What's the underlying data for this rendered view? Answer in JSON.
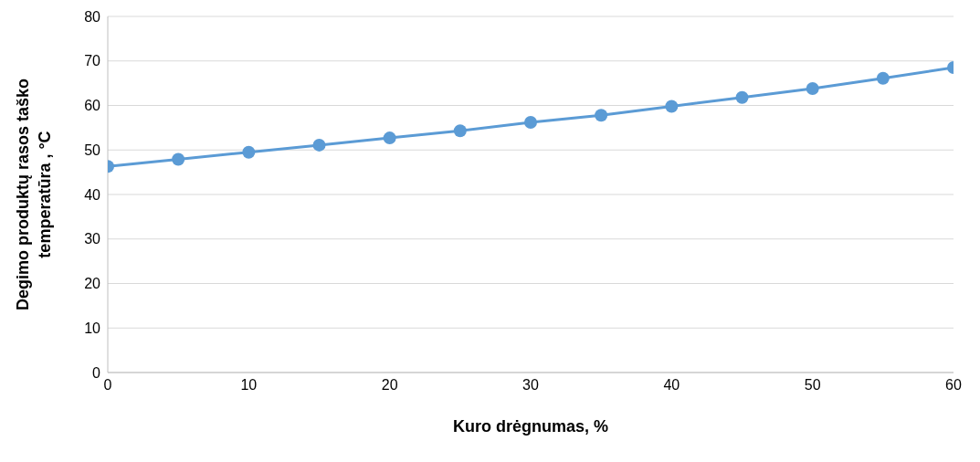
{
  "chart_data": {
    "type": "line",
    "xlabel": "Kuro drėgnumas,  %",
    "ylabel": "Degimo produktų rasos  taško temperatūra , °C",
    "x": [
      0,
      5,
      10,
      15,
      20,
      25,
      30,
      35,
      40,
      45,
      50,
      55,
      60
    ],
    "series": [
      {
        "color": "#5b9bd5",
        "values": [
          46.3,
          47.9,
          49.5,
          51.1,
          52.7,
          54.3,
          56.2,
          57.8,
          59.8,
          61.8,
          63.8,
          66.1,
          68.5
        ]
      }
    ],
    "xlim": [
      0,
      60
    ],
    "xticks": [
      0,
      10,
      20,
      30,
      40,
      50,
      60
    ],
    "ylim": [
      0,
      80
    ],
    "yticks": [
      0,
      10,
      20,
      30,
      40,
      50,
      60,
      70,
      80
    ],
    "grid": "y",
    "legend": false,
    "marker": "circle",
    "line_style": "solid"
  }
}
